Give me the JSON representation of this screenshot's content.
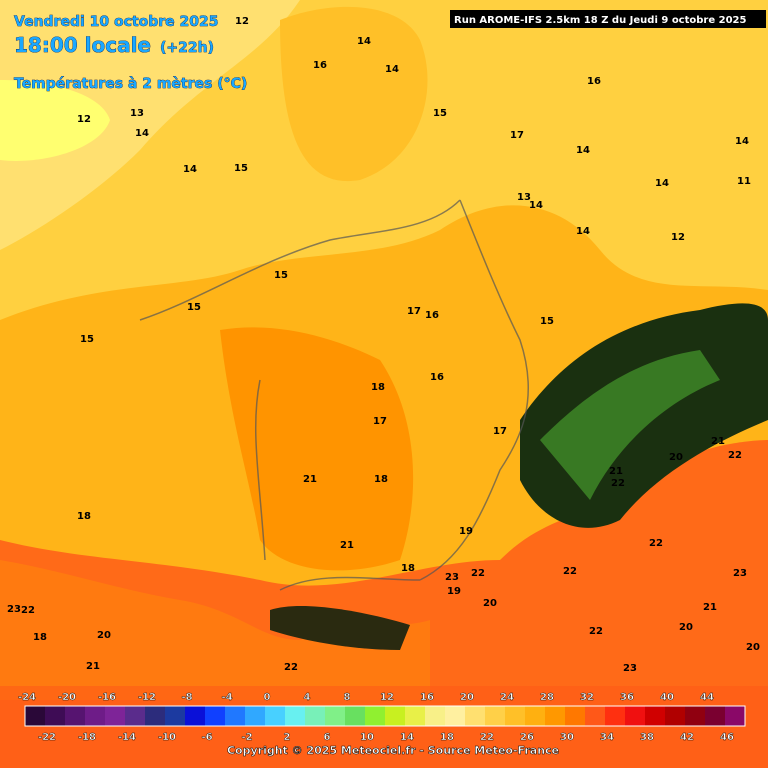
{
  "header": {
    "date": "Vendredi 10 octobre 2025",
    "time": "18:00 locale",
    "lead": "(+22h)",
    "variable": "Températures à 2 mètres (°C)",
    "run": "Run AROME-IFS 2.5km 18 Z du Jeudi 9 octobre 2025"
  },
  "scale": {
    "top_labels": [
      "-24",
      "-20",
      "-16",
      "-12",
      "-8",
      "-4",
      "0",
      "4",
      "8",
      "12",
      "16",
      "20",
      "24",
      "28",
      "32",
      "36",
      "40",
      "44"
    ],
    "bottom_labels": [
      "-22",
      "-18",
      "-14",
      "-10",
      "-6",
      "-2",
      "2",
      "6",
      "10",
      "14",
      "18",
      "22",
      "26",
      "30",
      "34",
      "38",
      "42",
      "46"
    ],
    "colors": [
      "#2a0838",
      "#3e0c55",
      "#561470",
      "#6e1c88",
      "#7e2498",
      "#5a2c8c",
      "#2c2c7c",
      "#1c3aa0",
      "#0a10d8",
      "#1040ff",
      "#2078ff",
      "#30a8ff",
      "#48d0ff",
      "#68f0f0",
      "#78f0b8",
      "#80f088",
      "#68e060",
      "#90f030",
      "#c8f020",
      "#e8f048",
      "#f8f088",
      "#fff0a0",
      "#ffe070",
      "#ffd048",
      "#ffc028",
      "#ffb010",
      "#ff9800",
      "#ff7800",
      "#ff5818",
      "#ff3010",
      "#f01010",
      "#d00000",
      "#b00000",
      "#900010",
      "#7a0030",
      "#8a0868"
    ]
  },
  "map_labels": [
    "12",
    "14",
    "16",
    "14",
    "12",
    "13",
    "14",
    "14",
    "15",
    "15",
    "17",
    "16",
    "14",
    "14",
    "14",
    "11",
    "13",
    "14",
    "14",
    "12",
    "15",
    "15",
    "15",
    "17",
    "16",
    "15",
    "18",
    "16",
    "17",
    "17",
    "21",
    "20",
    "22",
    "21",
    "18",
    "21",
    "22",
    "18",
    "21",
    "19",
    "22",
    "18",
    "23",
    "22",
    "19",
    "20",
    "22",
    "22",
    "21",
    "20",
    "23",
    "22",
    "23",
    "20",
    "21",
    "20",
    "18",
    "23",
    "22"
  ],
  "copyright": "Copyright © 2025 Meteociel.fr - Source Meteo-France"
}
